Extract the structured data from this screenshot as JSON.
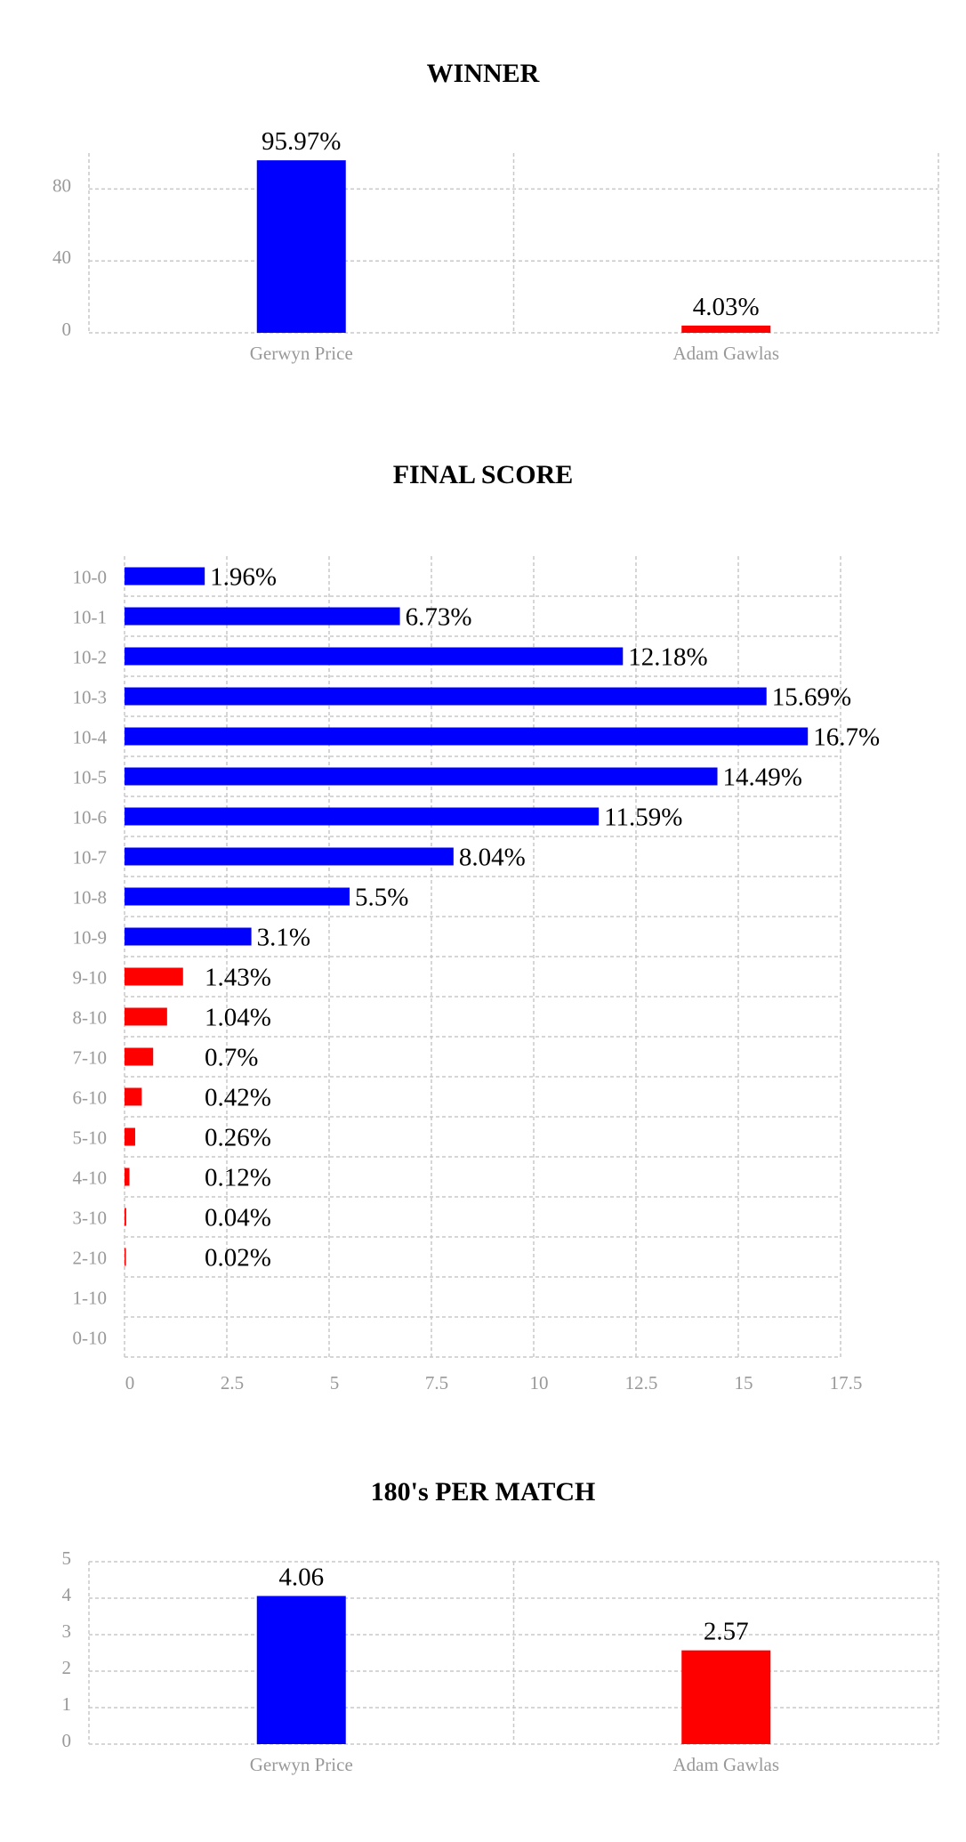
{
  "chart_data": [
    {
      "type": "bar",
      "title": "WINNER",
      "categories": [
        "Gerwyn Price",
        "Adam Gawlas"
      ],
      "values": [
        95.97,
        4.03
      ],
      "value_labels": [
        "95.97%",
        "4.03%"
      ],
      "colors": [
        "#0000ff",
        "#ff0000"
      ],
      "yticks": [
        "0",
        "40",
        "80"
      ],
      "ylim": [
        0,
        100
      ],
      "grid": true
    },
    {
      "type": "bar",
      "orientation": "horizontal",
      "title": "FINAL SCORE",
      "categories": [
        "10-0",
        "10-1",
        "10-2",
        "10-3",
        "10-4",
        "10-5",
        "10-6",
        "10-7",
        "10-8",
        "10-9",
        "9-10",
        "8-10",
        "7-10",
        "6-10",
        "5-10",
        "4-10",
        "3-10",
        "2-10",
        "1-10",
        "0-10"
      ],
      "values": [
        1.96,
        6.73,
        12.18,
        15.69,
        16.7,
        14.49,
        11.59,
        8.04,
        5.5,
        3.1,
        1.43,
        1.04,
        0.7,
        0.42,
        0.26,
        0.12,
        0.04,
        0.02,
        null,
        null
      ],
      "value_labels": [
        "1.96%",
        "6.73%",
        "12.18%",
        "15.69%",
        "16.7%",
        "14.49%",
        "11.59%",
        "8.04%",
        "5.5%",
        "3.1%",
        "1.43%",
        "1.04%",
        "0.7%",
        "0.42%",
        "0.26%",
        "0.12%",
        "0.04%",
        "0.02%",
        "",
        ""
      ],
      "colors": [
        "#0000ff",
        "#0000ff",
        "#0000ff",
        "#0000ff",
        "#0000ff",
        "#0000ff",
        "#0000ff",
        "#0000ff",
        "#0000ff",
        "#0000ff",
        "#ff0000",
        "#ff0000",
        "#ff0000",
        "#ff0000",
        "#ff0000",
        "#ff0000",
        "#ff0000",
        "#ff0000",
        "#ff0000",
        "#ff0000"
      ],
      "xticks": [
        "0",
        "2.5",
        "5",
        "7.5",
        "10",
        "12.5",
        "15",
        "17.5"
      ],
      "xlim": [
        0,
        17.5
      ],
      "grid": true
    },
    {
      "type": "bar",
      "title": "180's PER MATCH",
      "categories": [
        "Gerwyn Price",
        "Adam Gawlas"
      ],
      "values": [
        4.06,
        2.57
      ],
      "value_labels": [
        "4.06",
        "2.57"
      ],
      "colors": [
        "#0000ff",
        "#ff0000"
      ],
      "yticks": [
        "0",
        "1",
        "2",
        "3",
        "4",
        "5"
      ],
      "ylim": [
        0,
        5
      ],
      "grid": true
    }
  ]
}
